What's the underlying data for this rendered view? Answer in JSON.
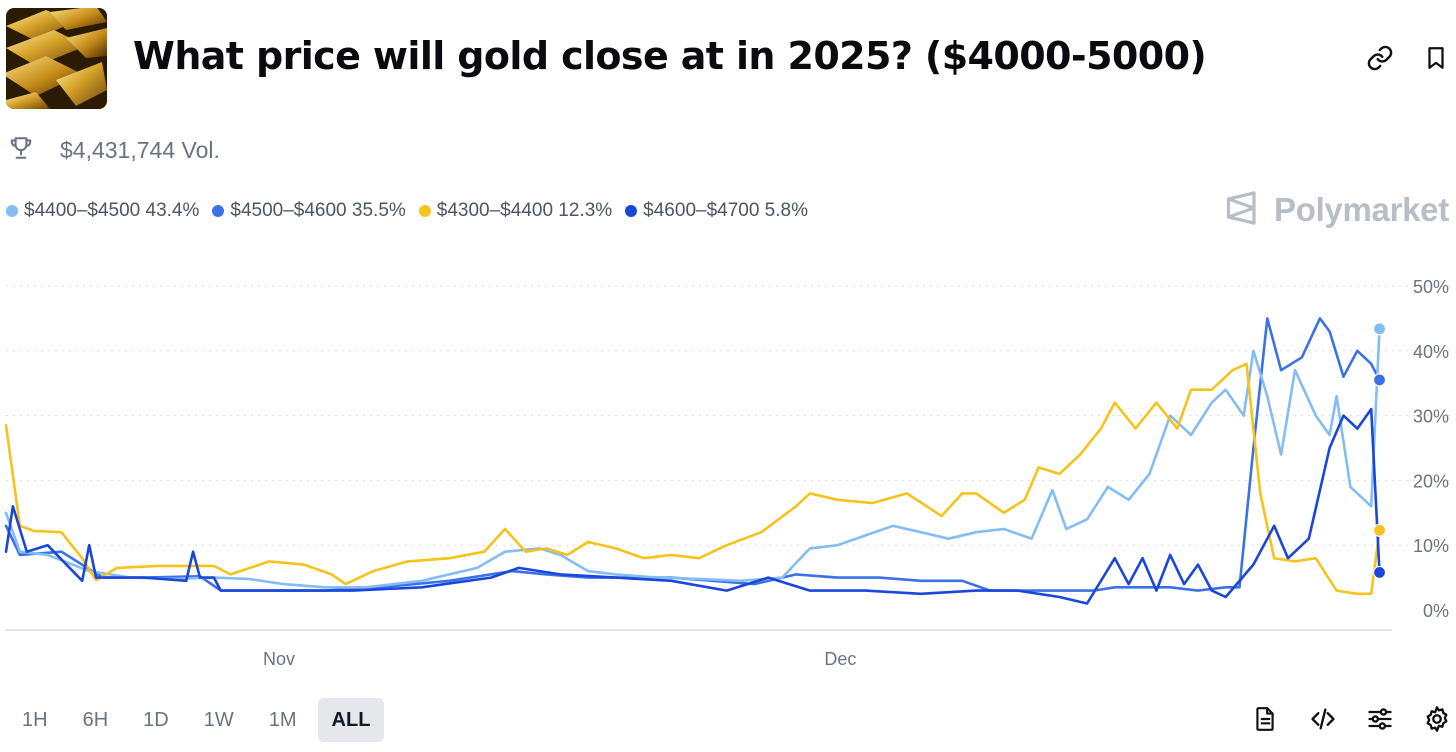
{
  "header": {
    "title": "What price will gold close at in 2025? ($4000-5000)",
    "thumbnail_icon": "gold-bars-image",
    "link_icon": "link-icon",
    "bookmark_icon": "bookmark-icon"
  },
  "volume": {
    "icon": "trophy-icon",
    "text": "$4,431,744 Vol."
  },
  "legend": [
    {
      "label": "$4400–$4500 43.4%",
      "color": "#84bdf3"
    },
    {
      "label": "$4500–$4600 35.5%",
      "color": "#3a72e6"
    },
    {
      "label": "$4300–$4400 12.3%",
      "color": "#f6c21c"
    },
    {
      "label": "$4600–$4700 5.8%",
      "color": "#1a47d9"
    }
  ],
  "brand": {
    "name": "Polymarket",
    "icon": "polymarket-logo-icon"
  },
  "range_buttons": [
    {
      "label": "1H",
      "active": false
    },
    {
      "label": "6H",
      "active": false
    },
    {
      "label": "1D",
      "active": false
    },
    {
      "label": "1W",
      "active": false
    },
    {
      "label": "1M",
      "active": false
    },
    {
      "label": "ALL",
      "active": true
    }
  ],
  "tools": [
    {
      "icon": "document-icon"
    },
    {
      "icon": "code-icon"
    },
    {
      "icon": "sliders-icon"
    },
    {
      "icon": "gear-icon"
    }
  ],
  "chart_data": {
    "type": "line",
    "x_ticks": [
      {
        "label": "Nov",
        "t": 0.197
      },
      {
        "label": "Dec",
        "t": 0.602
      }
    ],
    "y_ticks": [
      0,
      10,
      20,
      30,
      40,
      50
    ],
    "y_tick_labels": [
      "0%",
      "10%",
      "20%",
      "30%",
      "40%",
      "50%"
    ],
    "ylim": [
      0,
      50
    ],
    "grid": true,
    "legend_position": "top-left",
    "series": [
      {
        "name": "$4300–$4400",
        "color": "#f6c21c",
        "last_value": 12.3,
        "points": [
          [
            0,
            28.5
          ],
          [
            0.01,
            13
          ],
          [
            0.02,
            12.2
          ],
          [
            0.04,
            12
          ],
          [
            0.055,
            8
          ],
          [
            0.065,
            4.6
          ],
          [
            0.08,
            6.5
          ],
          [
            0.11,
            6.8
          ],
          [
            0.15,
            6.8
          ],
          [
            0.162,
            5.5
          ],
          [
            0.19,
            7.5
          ],
          [
            0.215,
            7
          ],
          [
            0.235,
            5.5
          ],
          [
            0.245,
            4
          ],
          [
            0.265,
            6
          ],
          [
            0.29,
            7.5
          ],
          [
            0.32,
            8
          ],
          [
            0.345,
            9
          ],
          [
            0.36,
            12.5
          ],
          [
            0.375,
            9
          ],
          [
            0.39,
            9.5
          ],
          [
            0.405,
            8.5
          ],
          [
            0.42,
            10.5
          ],
          [
            0.44,
            9.5
          ],
          [
            0.46,
            8
          ],
          [
            0.48,
            8.5
          ],
          [
            0.5,
            8
          ],
          [
            0.52,
            10
          ],
          [
            0.545,
            12
          ],
          [
            0.57,
            16
          ],
          [
            0.58,
            18
          ],
          [
            0.6,
            17
          ],
          [
            0.625,
            16.5
          ],
          [
            0.65,
            18
          ],
          [
            0.675,
            14.5
          ],
          [
            0.69,
            18
          ],
          [
            0.7,
            18
          ],
          [
            0.72,
            15
          ],
          [
            0.735,
            17
          ],
          [
            0.745,
            22
          ],
          [
            0.76,
            21
          ],
          [
            0.775,
            24
          ],
          [
            0.79,
            28
          ],
          [
            0.8,
            32
          ],
          [
            0.815,
            28
          ],
          [
            0.83,
            32
          ],
          [
            0.845,
            28
          ],
          [
            0.855,
            34
          ],
          [
            0.87,
            34
          ],
          [
            0.885,
            37
          ],
          [
            0.895,
            38
          ],
          [
            0.905,
            18
          ],
          [
            0.915,
            8
          ],
          [
            0.93,
            7.5
          ],
          [
            0.945,
            8
          ],
          [
            0.96,
            3
          ],
          [
            0.975,
            2.5
          ],
          [
            0.985,
            2.5
          ],
          [
            0.991,
            12.3
          ]
        ]
      },
      {
        "name": "$4400–$4500",
        "color": "#84bdf3",
        "last_value": 43.4,
        "points": [
          [
            0,
            15
          ],
          [
            0.01,
            9
          ],
          [
            0.03,
            8.5
          ],
          [
            0.06,
            6
          ],
          [
            0.09,
            5
          ],
          [
            0.12,
            4.8
          ],
          [
            0.15,
            5
          ],
          [
            0.175,
            4.8
          ],
          [
            0.2,
            4
          ],
          [
            0.23,
            3.5
          ],
          [
            0.26,
            3.5
          ],
          [
            0.3,
            4.5
          ],
          [
            0.34,
            6.5
          ],
          [
            0.36,
            9
          ],
          [
            0.385,
            9.5
          ],
          [
            0.4,
            8.5
          ],
          [
            0.42,
            6
          ],
          [
            0.44,
            5.5
          ],
          [
            0.47,
            5
          ],
          [
            0.5,
            4.8
          ],
          [
            0.53,
            4.5
          ],
          [
            0.56,
            5
          ],
          [
            0.58,
            9.5
          ],
          [
            0.6,
            10
          ],
          [
            0.62,
            11.5
          ],
          [
            0.64,
            13
          ],
          [
            0.66,
            12
          ],
          [
            0.68,
            11
          ],
          [
            0.7,
            12
          ],
          [
            0.72,
            12.5
          ],
          [
            0.74,
            11
          ],
          [
            0.755,
            18.5
          ],
          [
            0.765,
            12.5
          ],
          [
            0.78,
            14
          ],
          [
            0.795,
            19
          ],
          [
            0.81,
            17
          ],
          [
            0.825,
            21
          ],
          [
            0.84,
            30
          ],
          [
            0.855,
            27
          ],
          [
            0.87,
            32
          ],
          [
            0.88,
            34
          ],
          [
            0.893,
            30
          ],
          [
            0.9,
            40
          ],
          [
            0.91,
            33
          ],
          [
            0.92,
            24
          ],
          [
            0.93,
            37
          ],
          [
            0.945,
            30
          ],
          [
            0.955,
            27
          ],
          [
            0.96,
            33
          ],
          [
            0.97,
            19
          ],
          [
            0.985,
            16
          ],
          [
            0.991,
            43.4
          ]
        ]
      },
      {
        "name": "$4500–$4600",
        "color": "#3a72e6",
        "last_value": 35.5,
        "points": [
          [
            0,
            13
          ],
          [
            0.01,
            8.5
          ],
          [
            0.04,
            9
          ],
          [
            0.07,
            5
          ],
          [
            0.1,
            5
          ],
          [
            0.14,
            5.2
          ],
          [
            0.155,
            3
          ],
          [
            0.19,
            3
          ],
          [
            0.23,
            3
          ],
          [
            0.27,
            3.5
          ],
          [
            0.32,
            4.5
          ],
          [
            0.365,
            6
          ],
          [
            0.39,
            5.5
          ],
          [
            0.42,
            5
          ],
          [
            0.45,
            5
          ],
          [
            0.48,
            5
          ],
          [
            0.51,
            4.5
          ],
          [
            0.54,
            4
          ],
          [
            0.57,
            5.5
          ],
          [
            0.6,
            5
          ],
          [
            0.63,
            5
          ],
          [
            0.66,
            4.5
          ],
          [
            0.69,
            4.5
          ],
          [
            0.71,
            3
          ],
          [
            0.735,
            3
          ],
          [
            0.76,
            3
          ],
          [
            0.785,
            3
          ],
          [
            0.8,
            3.5
          ],
          [
            0.82,
            3.5
          ],
          [
            0.84,
            3.5
          ],
          [
            0.86,
            3
          ],
          [
            0.88,
            3.5
          ],
          [
            0.89,
            3.5
          ],
          [
            0.9,
            25
          ],
          [
            0.91,
            45
          ],
          [
            0.92,
            37
          ],
          [
            0.935,
            39
          ],
          [
            0.948,
            45
          ],
          [
            0.955,
            43
          ],
          [
            0.965,
            36
          ],
          [
            0.975,
            40
          ],
          [
            0.985,
            38
          ],
          [
            0.991,
            35.5
          ]
        ]
      },
      {
        "name": "$4600–$4700",
        "color": "#1a47d9",
        "last_value": 5.8,
        "points": [
          [
            0,
            9
          ],
          [
            0.005,
            16
          ],
          [
            0.015,
            9
          ],
          [
            0.03,
            10
          ],
          [
            0.055,
            4.5
          ],
          [
            0.06,
            10
          ],
          [
            0.065,
            5
          ],
          [
            0.1,
            5
          ],
          [
            0.13,
            4.5
          ],
          [
            0.135,
            9
          ],
          [
            0.14,
            5
          ],
          [
            0.15,
            5
          ],
          [
            0.155,
            3
          ],
          [
            0.2,
            3
          ],
          [
            0.25,
            3
          ],
          [
            0.3,
            3.5
          ],
          [
            0.35,
            5
          ],
          [
            0.37,
            6.5
          ],
          [
            0.4,
            5.5
          ],
          [
            0.44,
            5
          ],
          [
            0.48,
            4.5
          ],
          [
            0.52,
            3
          ],
          [
            0.55,
            5
          ],
          [
            0.58,
            3
          ],
          [
            0.62,
            3
          ],
          [
            0.66,
            2.5
          ],
          [
            0.7,
            3
          ],
          [
            0.73,
            3
          ],
          [
            0.76,
            2
          ],
          [
            0.78,
            1
          ],
          [
            0.8,
            8
          ],
          [
            0.81,
            4
          ],
          [
            0.82,
            8
          ],
          [
            0.83,
            3
          ],
          [
            0.84,
            8.5
          ],
          [
            0.85,
            4
          ],
          [
            0.86,
            7
          ],
          [
            0.87,
            3
          ],
          [
            0.88,
            2
          ],
          [
            0.9,
            7
          ],
          [
            0.915,
            13
          ],
          [
            0.925,
            8
          ],
          [
            0.94,
            11
          ],
          [
            0.955,
            25
          ],
          [
            0.965,
            30
          ],
          [
            0.975,
            28
          ],
          [
            0.985,
            31
          ],
          [
            0.991,
            5.8
          ]
        ]
      }
    ]
  }
}
